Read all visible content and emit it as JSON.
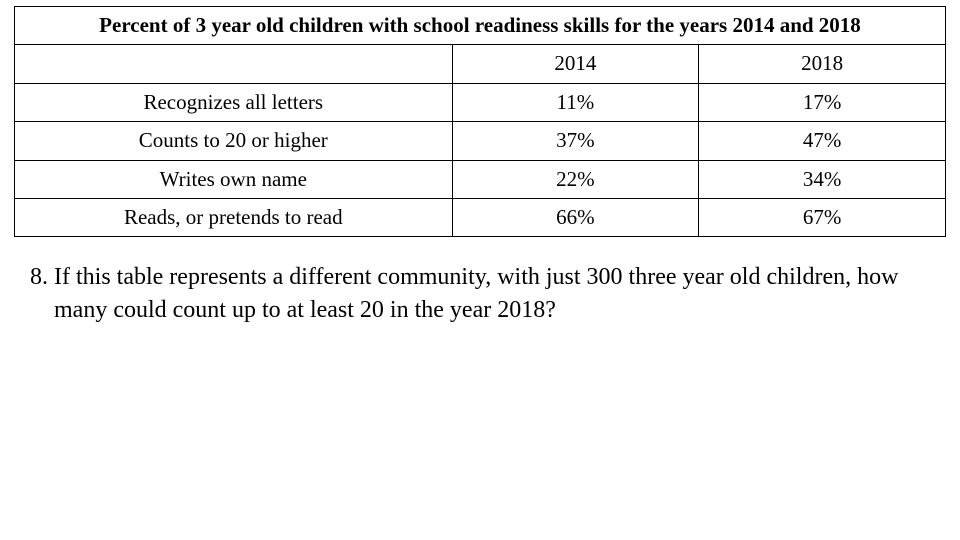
{
  "table": {
    "title": "Percent of 3 year old children with school readiness skills for the years 2014 and 2018",
    "year_headers": [
      "2014",
      "2018"
    ],
    "rows": [
      {
        "skill": "Recognizes all letters",
        "y2014": "11%",
        "y2018": "17%"
      },
      {
        "skill": "Counts to 20 or higher",
        "y2014": "37%",
        "y2018": "47%"
      },
      {
        "skill": "Writes own name",
        "y2014": "22%",
        "y2018": "34%"
      },
      {
        "skill": "Reads, or pretends to read",
        "y2014": "66%",
        "y2018": "67%"
      }
    ],
    "border_color": "#000000",
    "background_color": "#ffffff",
    "font_family": "Times New Roman",
    "title_fontsize_pt": 16,
    "cell_fontsize_pt": 16
  },
  "question": {
    "number": "8.",
    "text": "If this table represents a different community, with just 300 three year old children, how many could count up to at least 20 in the year 2018?",
    "fontsize_pt": 18
  }
}
